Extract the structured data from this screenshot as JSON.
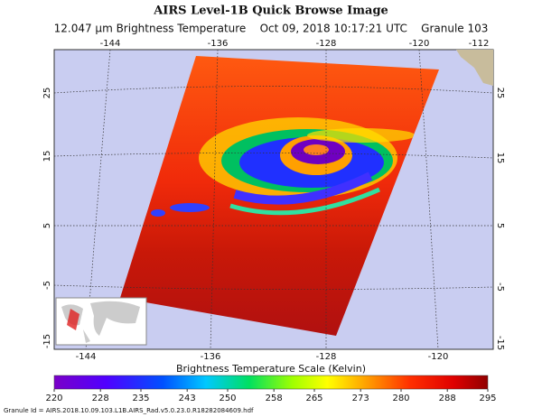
{
  "header": {
    "title": "AIRS Level-1B Quick Browse Image",
    "subtitle": "12.047 μm Brightness Temperature    Oct 09, 2018 10:17:21 UTC    Granule 103"
  },
  "map": {
    "top_lon_labels": [
      -144,
      -136,
      -128,
      -120,
      -112
    ],
    "bottom_lon_labels": [
      -144,
      -136,
      -128,
      -120
    ],
    "left_lat_labels": [
      25,
      15,
      5,
      -5,
      -15
    ],
    "right_lat_labels": [
      25,
      15,
      5,
      -5,
      -15
    ]
  },
  "colorbar": {
    "label": "Brightness Temperature Scale (Kelvin)",
    "ticks": [
      220,
      228,
      235,
      243,
      250,
      258,
      265,
      273,
      280,
      288,
      295
    ]
  },
  "footer": {
    "granule_id": "Granule Id = AIRS.2018.10.09.103.L1B.AIRS_Rad.v5.0.23.0.R18282084609.hdf"
  }
}
